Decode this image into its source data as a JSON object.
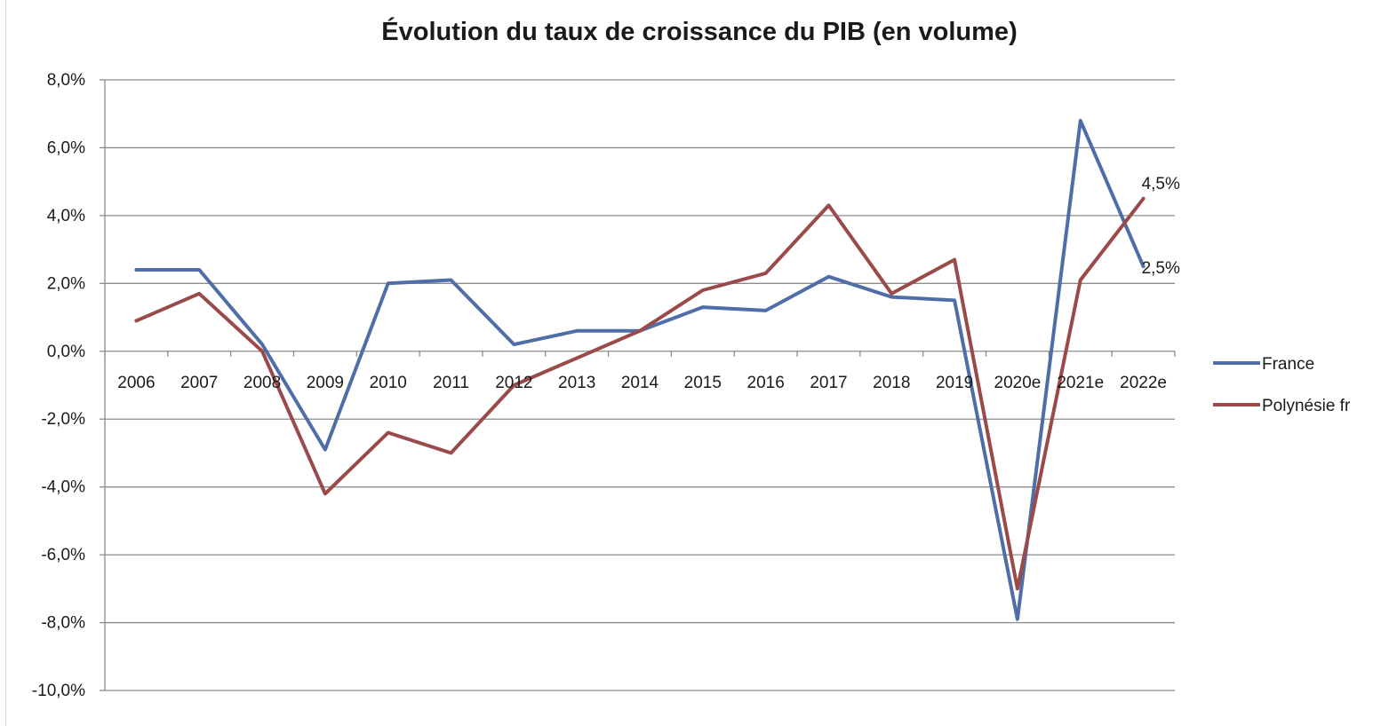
{
  "chart_data": {
    "type": "line",
    "title": "Évolution du taux de croissance du PIB (en volume)",
    "categories": [
      "2006",
      "2007",
      "2008",
      "2009",
      "2010",
      "2011",
      "2012",
      "2013",
      "2014",
      "2015",
      "2016",
      "2017",
      "2018",
      "2019",
      "2020e",
      "2021e",
      "2022e"
    ],
    "series": [
      {
        "name": "France",
        "color": "#4f6ea8",
        "values": [
          2.4,
          2.4,
          0.2,
          -2.9,
          2.0,
          2.1,
          0.2,
          0.6,
          0.6,
          1.3,
          1.2,
          2.2,
          1.6,
          1.5,
          -7.9,
          6.8,
          2.5
        ]
      },
      {
        "name": "Polynésie fr",
        "color": "#9a4a48",
        "values": [
          0.9,
          1.7,
          0.0,
          -4.2,
          -2.4,
          -3.0,
          -1.0,
          -0.2,
          0.6,
          1.8,
          2.3,
          4.3,
          1.7,
          2.7,
          -7.0,
          2.1,
          4.5
        ]
      }
    ],
    "yticks": [
      8,
      6,
      4,
      2,
      0,
      -2,
      -4,
      -6,
      -8,
      -10
    ],
    "ytick_labels": [
      "8,0%",
      "6,0%",
      "4,0%",
      "2,0%",
      "0,0%",
      "-2,0%",
      "-4,0%",
      "-6,0%",
      "-8,0%",
      "-10,0%"
    ],
    "ylim": [
      -10,
      8
    ],
    "grid": true,
    "legend_position": "right",
    "annotations": [
      {
        "series": "Polynésie fr",
        "category": "2022e",
        "text": "4,5%"
      },
      {
        "series": "France",
        "category": "2022e",
        "text": "2,5%"
      }
    ]
  }
}
